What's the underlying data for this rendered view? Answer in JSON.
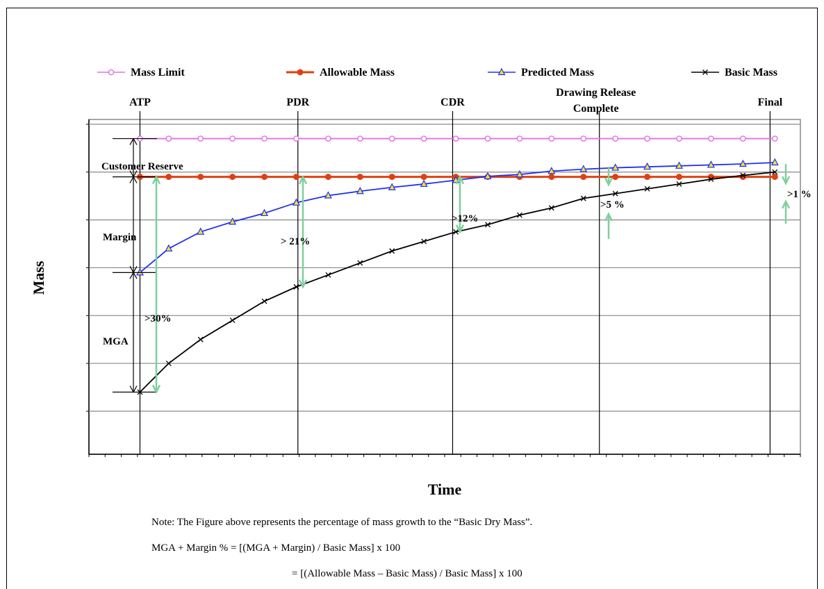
{
  "chart_data": {
    "type": "line",
    "ylabel": "Mass",
    "xlabel": "Time",
    "grid": true,
    "legend_position": "top",
    "legend": [
      {
        "name": "Mass Limit",
        "color": "#e070e0",
        "marker": "open-circle"
      },
      {
        "name": "Allowable Mass",
        "color": "#e04010",
        "marker": "filled-circle"
      },
      {
        "name": "Predicted Mass",
        "color": "#2030f0",
        "marker": "triangle"
      },
      {
        "name": "Basic Mass",
        "color": "#000000",
        "marker": "x"
      }
    ],
    "milestones": [
      {
        "label": "ATP",
        "x": 1.6
      },
      {
        "label": "PDR",
        "x": 6.55
      },
      {
        "label": "CDR",
        "x": 11.4
      },
      {
        "label_lines": [
          "Drawing Release",
          "Complete"
        ],
        "x": 16
      },
      {
        "label": "Final",
        "x": 21.35
      }
    ],
    "x": [
      1.6,
      2.5,
      3.5,
      4.5,
      5.5,
      6.5,
      7.5,
      8.5,
      9.5,
      10.5,
      11.5,
      12.5,
      13.5,
      14.5,
      15.5,
      16.5,
      17.5,
      18.5,
      19.5,
      20.5,
      21.5
    ],
    "series": [
      {
        "name": "Mass Limit",
        "values": [
          127,
          127,
          127,
          127,
          127,
          127,
          127,
          127,
          127,
          127,
          127,
          127,
          127,
          127,
          127,
          127,
          127,
          127,
          127,
          127,
          127
        ]
      },
      {
        "name": "Allowable Mass",
        "values": [
          119,
          119,
          119,
          119,
          119,
          119,
          119,
          119,
          119,
          119,
          119,
          119,
          119,
          119,
          119,
          119,
          119,
          119,
          119,
          119,
          119
        ]
      },
      {
        "name": "Predicted Mass",
        "values": [
          99,
          104,
          107.5,
          109.6,
          111.4,
          113.6,
          115.1,
          116,
          116.8,
          117.5,
          118.3,
          119.1,
          119.5,
          120.2,
          120.6,
          120.9,
          121.1,
          121.3,
          121.5,
          121.7,
          122
        ]
      },
      {
        "name": "Basic Mass",
        "values": [
          74,
          80,
          85,
          89,
          93,
          96,
          98.5,
          101,
          103.5,
          105.5,
          107.5,
          109,
          111,
          112.5,
          114.5,
          115.5,
          116.5,
          117.5,
          118.5,
          119.3,
          120
        ]
      }
    ],
    "ylim": [
      61,
      131
    ],
    "xlim": [
      0,
      22.3
    ],
    "annotations": [
      {
        "text": "Customer Reserve"
      },
      {
        "text": "Margin"
      },
      {
        "text": "MGA"
      },
      {
        "text": ">30%"
      },
      {
        "text": "> 21%"
      },
      {
        "text": ">12%"
      },
      {
        "text": ">5 %"
      },
      {
        "text": ">1 %"
      }
    ]
  },
  "notes": {
    "line1": "Note: The Figure above represents the percentage of mass growth to the “Basic Dry Mass”.",
    "line2": "MGA + Margin % = [(MGA + Margin) / Basic Mass] x 100",
    "line3": "= [(Allowable Mass – Basic Mass) / Basic Mass] x 100"
  }
}
